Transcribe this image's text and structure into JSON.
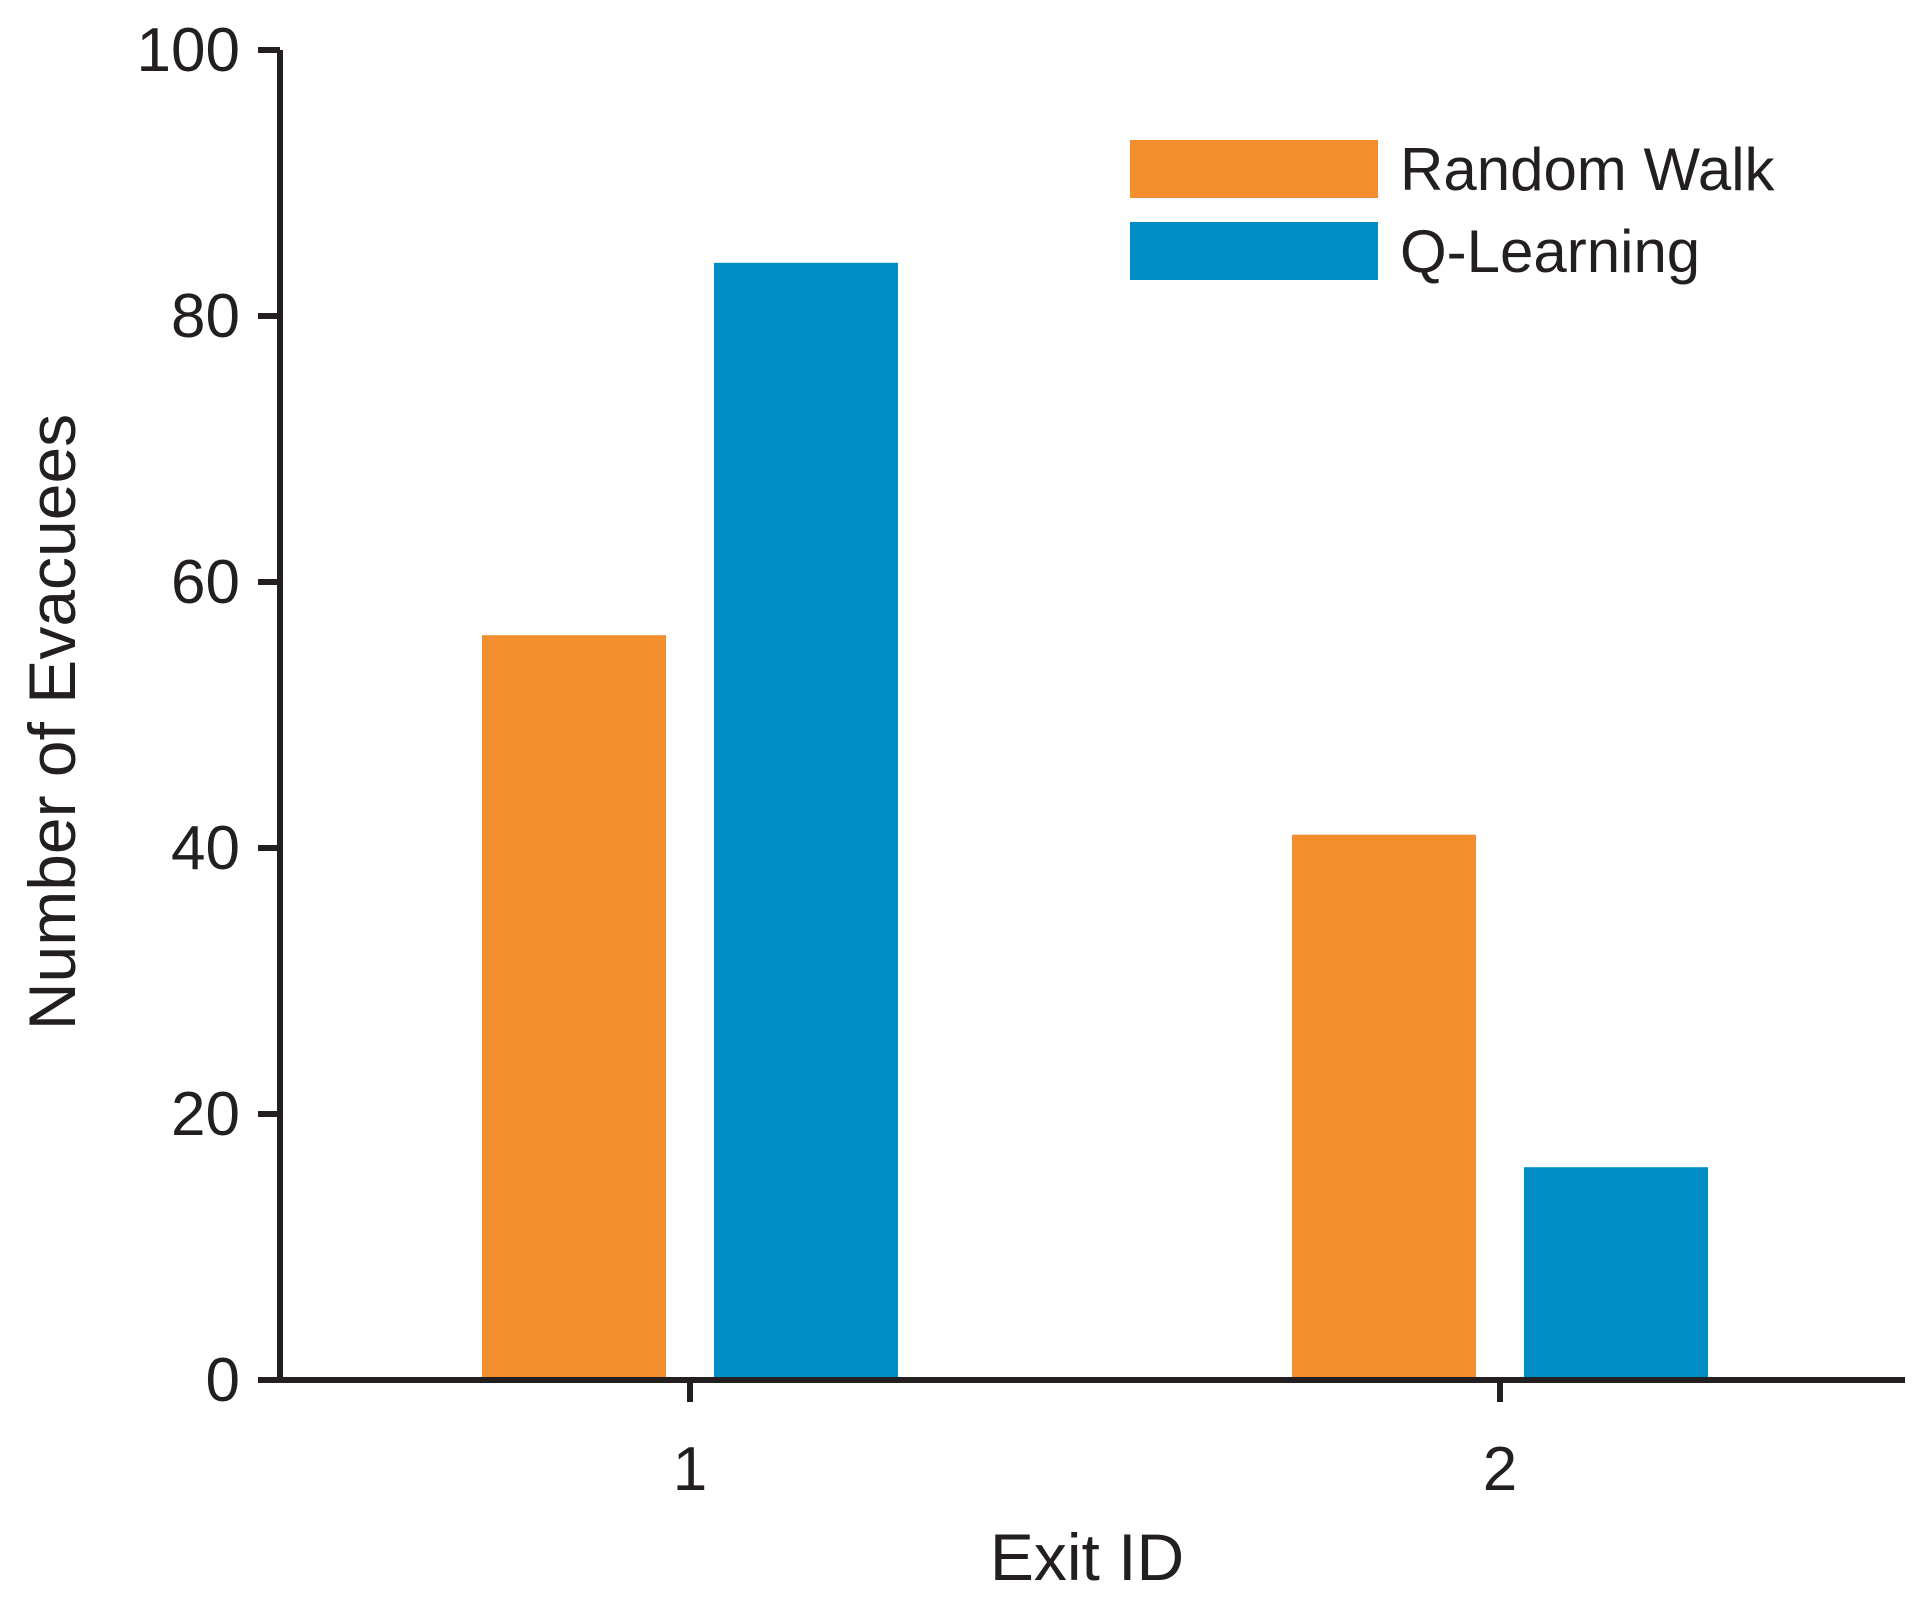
{
  "chart_data": {
    "type": "bar",
    "title": "",
    "xlabel": "Exit ID",
    "ylabel": "Number of Evacuees",
    "categories": [
      "1",
      "2"
    ],
    "series": [
      {
        "name": "Random Walk",
        "color": "#f28e2e",
        "values": [
          56,
          41
        ]
      },
      {
        "name": "Q-Learning",
        "color": "#008dc4",
        "values": [
          84,
          16
        ]
      }
    ],
    "ylim": [
      0,
      100
    ],
    "yticks": [
      0,
      20,
      40,
      60,
      80,
      100
    ],
    "grid": false,
    "legend_position": "top-right"
  }
}
